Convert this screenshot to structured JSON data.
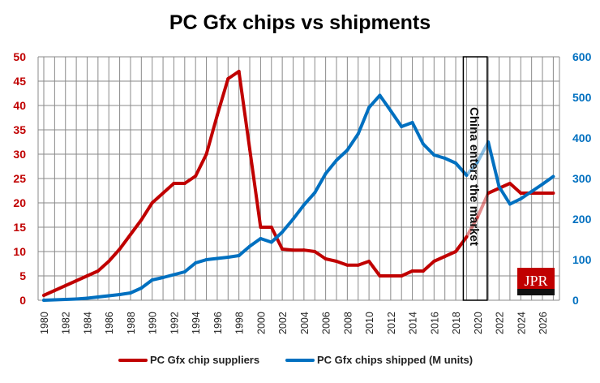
{
  "chart_data": {
    "type": "line",
    "title": "PC Gfx chips vs shipments",
    "x": [
      1980,
      1981,
      1982,
      1983,
      1984,
      1985,
      1986,
      1987,
      1988,
      1989,
      1990,
      1991,
      1992,
      1993,
      1994,
      1995,
      1996,
      1997,
      1998,
      1999,
      2000,
      2001,
      2002,
      2003,
      2004,
      2005,
      2006,
      2007,
      2008,
      2009,
      2010,
      2011,
      2012,
      2013,
      2014,
      2015,
      2016,
      2017,
      2018,
      2019,
      2020,
      2021,
      2022,
      2023,
      2024,
      2025,
      2026,
      2027
    ],
    "x_tick_labels": [
      "1980",
      "1982",
      "1984",
      "1986",
      "1988",
      "1990",
      "1992",
      "1994",
      "1996",
      "1998",
      "2000",
      "2002",
      "2004",
      "2006",
      "2008",
      "2010",
      "2012",
      "2014",
      "2016",
      "2018",
      "2020",
      "2022",
      "2024",
      "2026"
    ],
    "y_left": {
      "range": [
        0,
        50
      ],
      "ticks": [
        "0",
        "5",
        "10",
        "15",
        "20",
        "25",
        "30",
        "35",
        "40",
        "45",
        "50"
      ],
      "color": "#c00000"
    },
    "y_right": {
      "range": [
        0,
        600
      ],
      "ticks": [
        "0",
        "100",
        "200",
        "300",
        "400",
        "500",
        "600"
      ],
      "color": "#0070c0"
    },
    "grid": true,
    "legend_position": "bottom",
    "series": [
      {
        "name": "PC Gfx chip suppliers",
        "axis": "left",
        "color": "#c00000",
        "values": [
          1,
          2,
          3,
          4,
          5,
          6,
          8,
          10.5,
          13.5,
          16.5,
          20,
          22,
          24,
          24,
          25.5,
          30,
          38,
          45.5,
          47,
          31,
          15,
          15,
          10.5,
          10.3,
          10.3,
          10,
          8.5,
          8,
          7.2,
          7.2,
          8,
          5,
          5,
          5,
          6,
          6,
          8,
          9,
          10,
          13,
          17,
          22,
          23,
          24,
          22,
          22,
          22,
          22
        ]
      },
      {
        "name": "PC Gfx chips shipped (M units)",
        "axis": "right",
        "color": "#0070c0",
        "values": [
          0,
          1,
          2,
          3,
          5,
          8,
          11,
          14,
          18,
          30,
          50,
          56,
          63,
          70,
          92,
          100,
          103,
          106,
          110,
          133,
          152,
          143,
          168,
          200,
          235,
          265,
          312,
          345,
          370,
          410,
          475,
          505,
          467,
          428,
          438,
          385,
          358,
          350,
          338,
          308,
          340,
          390,
          280,
          237,
          250,
          268,
          286,
          305
        ]
      }
    ],
    "annotation": {
      "text": "China enters the market",
      "from": 2018.7,
      "to": 2020.9
    },
    "logo": "JPR Jon Peddie Research"
  }
}
